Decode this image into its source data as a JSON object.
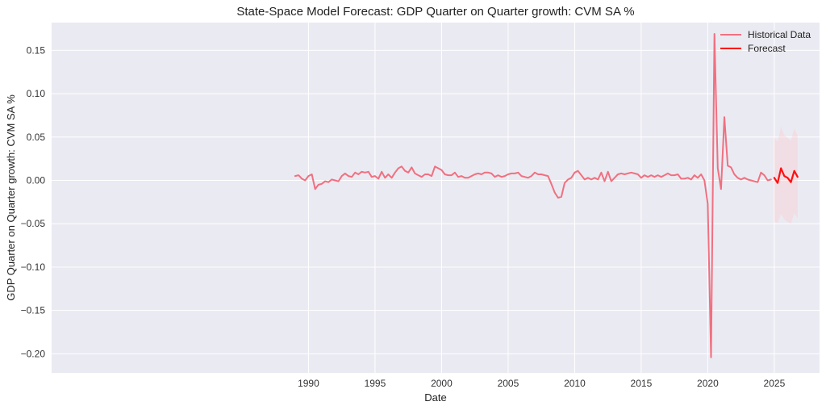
{
  "chart_data": {
    "type": "line",
    "title": "State-Space Model Forecast: GDP Quarter on Quarter growth: CVM SA %",
    "xlabel": "Date",
    "ylabel": "GDP Quarter on Quarter growth: CVM SA %",
    "xlim": [
      1970.7,
      2028.4
    ],
    "ylim": [
      -0.222,
      0.182
    ],
    "x_ticks": [
      1990,
      1995,
      2000,
      2005,
      2010,
      2015,
      2020,
      2025
    ],
    "y_ticks": [
      -0.2,
      -0.15,
      -0.1,
      -0.05,
      0.0,
      0.05,
      0.1,
      0.15
    ],
    "y_tick_labels": [
      "−0.20",
      "−0.15",
      "−0.10",
      "−0.05",
      "0.00",
      "0.05",
      "0.10",
      "0.15"
    ],
    "grid": true,
    "legend_position": "top-right",
    "series": [
      {
        "name": "Historical Data",
        "color": "#f07080",
        "x_start": 1989.0,
        "x_step": 0.25,
        "values": [
          0.005,
          0.006,
          0.002,
          0.0,
          0.005,
          0.007,
          -0.01,
          -0.005,
          -0.004,
          -0.001,
          -0.002,
          0.001,
          0.0,
          -0.001,
          0.005,
          0.008,
          0.005,
          0.004,
          0.009,
          0.007,
          0.01,
          0.009,
          0.01,
          0.004,
          0.005,
          0.002,
          0.01,
          0.003,
          0.007,
          0.003,
          0.009,
          0.014,
          0.016,
          0.011,
          0.009,
          0.015,
          0.008,
          0.006,
          0.004,
          0.007,
          0.007,
          0.005,
          0.016,
          0.014,
          0.012,
          0.007,
          0.006,
          0.006,
          0.009,
          0.004,
          0.005,
          0.003,
          0.003,
          0.005,
          0.007,
          0.008,
          0.007,
          0.009,
          0.009,
          0.008,
          0.004,
          0.006,
          0.004,
          0.005,
          0.007,
          0.008,
          0.008,
          0.009,
          0.005,
          0.004,
          0.003,
          0.005,
          0.009,
          0.007,
          0.007,
          0.006,
          0.005,
          -0.004,
          -0.014,
          -0.02,
          -0.019,
          -0.003,
          0.001,
          0.003,
          0.009,
          0.011,
          0.006,
          0.001,
          0.003,
          0.001,
          0.003,
          0.001,
          0.009,
          -0.001,
          0.01,
          -0.001,
          0.003,
          0.007,
          0.008,
          0.007,
          0.008,
          0.009,
          0.008,
          0.007,
          0.003,
          0.006,
          0.004,
          0.006,
          0.004,
          0.006,
          0.004,
          0.006,
          0.008,
          0.006,
          0.006,
          0.007,
          0.002,
          0.002,
          0.003,
          0.001,
          0.006,
          0.003,
          0.007,
          0.0,
          -0.027,
          -0.204,
          0.169,
          0.014,
          -0.01,
          0.073,
          0.017,
          0.015,
          0.007,
          0.003,
          0.001,
          0.003,
          0.001,
          0.0,
          -0.001,
          -0.002,
          0.009,
          0.006,
          0.0,
          0.001
        ]
      },
      {
        "name": "Forecast",
        "color": "#ff1010",
        "x": [
          2025.0,
          2025.25,
          2025.5,
          2025.75,
          2026.0,
          2026.25,
          2026.5,
          2026.75
        ],
        "values": [
          0.003,
          -0.003,
          0.014,
          0.005,
          0.003,
          -0.002,
          0.011,
          0.004
        ]
      }
    ],
    "confidence_band": {
      "color": "#ffc8cc",
      "x": [
        2025.0,
        2025.25,
        2025.5,
        2025.75,
        2026.0,
        2026.25,
        2026.5,
        2026.75
      ],
      "lower": [
        -0.048,
        -0.049,
        -0.039,
        -0.045,
        -0.048,
        -0.05,
        -0.038,
        -0.044
      ],
      "upper": [
        0.05,
        0.045,
        0.062,
        0.052,
        0.049,
        0.046,
        0.06,
        0.052
      ]
    }
  }
}
